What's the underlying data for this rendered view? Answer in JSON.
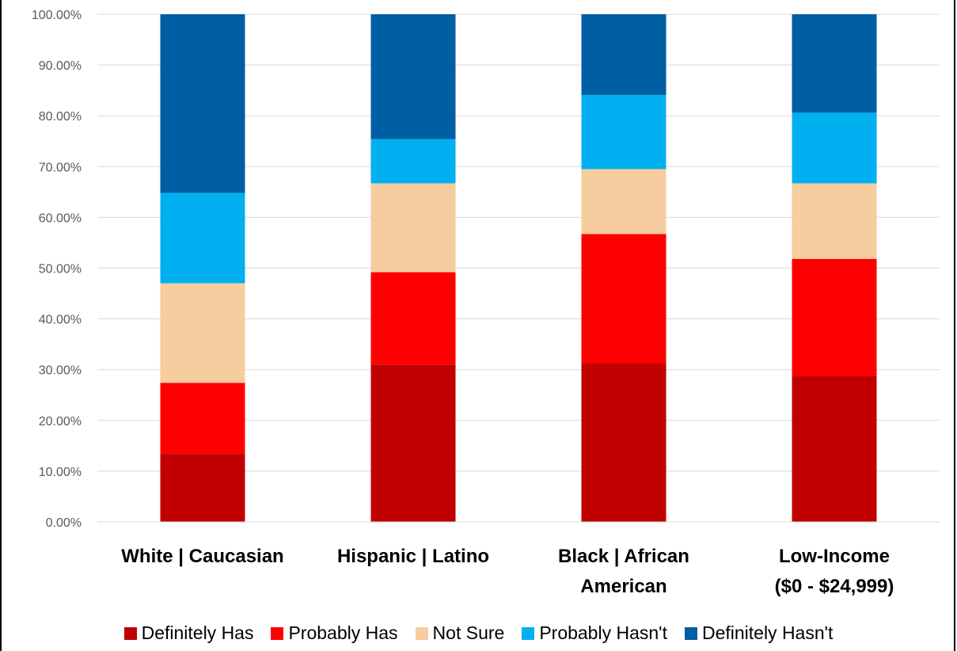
{
  "chart_data": {
    "type": "bar",
    "stacked": true,
    "categories": [
      [
        "White | Caucasian"
      ],
      [
        "Hispanic | Latino"
      ],
      [
        "Black | African",
        "American"
      ],
      [
        "Low-Income",
        "($0 - $24,999)"
      ]
    ],
    "series": [
      {
        "name": "Definitely Has",
        "color": "#c00000",
        "values": [
          13.4,
          31.0,
          31.2,
          28.7
        ]
      },
      {
        "name": "Probably Has",
        "color": "#ff0000",
        "values": [
          14.0,
          18.2,
          25.5,
          23.1
        ]
      },
      {
        "name": "Not Sure",
        "color": "#f5cd9e",
        "values": [
          19.6,
          17.5,
          12.8,
          14.9
        ]
      },
      {
        "name": "Probably Hasn't",
        "color": "#00b0f0",
        "values": [
          17.8,
          8.7,
          14.6,
          13.9
        ]
      },
      {
        "name": "Definitely Hasn't",
        "color": "#005ea2",
        "values": [
          35.2,
          24.6,
          15.9,
          19.4
        ]
      }
    ],
    "ylim": [
      0,
      100
    ],
    "yticks": [
      "0.00%",
      "10.00%",
      "20.00%",
      "30.00%",
      "40.00%",
      "50.00%",
      "60.00%",
      "70.00%",
      "80.00%",
      "90.00%",
      "100.00%"
    ],
    "grid": true,
    "legend_position": "bottom"
  }
}
